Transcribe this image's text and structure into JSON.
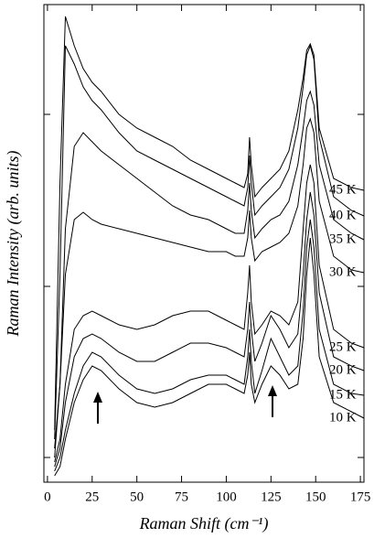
{
  "chart_data": {
    "type": "line",
    "xlabel": "Raman Shift (cm⁻¹)",
    "ylabel": "Raman Intensity (arb. units)",
    "x": [
      4,
      7,
      10,
      15,
      20,
      25,
      30,
      40,
      50,
      60,
      70,
      80,
      90,
      100,
      105,
      110,
      112,
      113,
      114,
      116,
      120,
      125,
      130,
      135,
      140,
      143,
      145,
      147,
      149,
      152,
      160,
      170,
      177
    ],
    "xlim": [
      -2,
      177
    ],
    "xticks": [
      0,
      25,
      50,
      75,
      100,
      125,
      150,
      175
    ],
    "ylim": [
      0,
      522
    ],
    "yticks": [
      27,
      214,
      402
    ],
    "series": [
      {
        "name": "45 K",
        "color": "#000000",
        "values": [
          57,
          327,
          509,
          477,
          452,
          437,
          427,
          402,
          387,
          377,
          367,
          352,
          342,
          332,
          327,
          322,
          337,
          377,
          347,
          312,
          322,
          332,
          342,
          362,
          407,
          442,
          472,
          479,
          467,
          387,
          332,
          322,
          319
        ]
      },
      {
        "name": "40 K",
        "color": "#000000",
        "values": [
          47,
          227,
          477,
          457,
          432,
          417,
          407,
          382,
          362,
          352,
          342,
          332,
          322,
          312,
          307,
          302,
          322,
          357,
          327,
          292,
          302,
          312,
          322,
          342,
          387,
          432,
          467,
          477,
          462,
          377,
          312,
          297,
          291
        ]
      },
      {
        "name": "35 K",
        "color": "#000000",
        "values": [
          37,
          107,
          277,
          367,
          382,
          372,
          362,
          347,
          332,
          317,
          302,
          292,
          287,
          277,
          272,
          272,
          297,
          327,
          297,
          267,
          277,
          287,
          292,
          307,
          347,
          387,
          417,
          427,
          412,
          347,
          287,
          272,
          265
        ]
      },
      {
        "name": "30 K",
        "color": "#000000",
        "values": [
          27,
          107,
          227,
          287,
          295,
          287,
          282,
          277,
          272,
          267,
          262,
          257,
          252,
          252,
          247,
          247,
          267,
          297,
          267,
          242,
          252,
          257,
          262,
          272,
          302,
          347,
          387,
          397,
          382,
          307,
          247,
          232,
          229
        ]
      },
      {
        "name": "25 K",
        "color": "#000000",
        "values": [
          22,
          47,
          107,
          167,
          182,
          187,
          182,
          172,
          167,
          172,
          182,
          187,
          187,
          177,
          172,
          167,
          207,
          237,
          197,
          162,
          172,
          187,
          182,
          172,
          197,
          277,
          327,
          347,
          327,
          237,
          167,
          152,
          147
        ]
      },
      {
        "name": "20 K",
        "color": "#000000",
        "values": [
          17,
          37,
          87,
          137,
          157,
          162,
          157,
          142,
          132,
          132,
          142,
          152,
          152,
          147,
          142,
          137,
          167,
          197,
          167,
          132,
          152,
          182,
          167,
          147,
          162,
          227,
          287,
          317,
          292,
          207,
          137,
          127,
          122
        ]
      },
      {
        "name": "15 K",
        "color": "#000000",
        "values": [
          12,
          27,
          57,
          97,
          127,
          142,
          137,
          117,
          102,
          97,
          102,
          112,
          117,
          117,
          112,
          107,
          137,
          167,
          132,
          97,
          122,
          157,
          137,
          117,
          127,
          187,
          257,
          287,
          257,
          167,
          107,
          97,
          95
        ]
      },
      {
        "name": "10 K",
        "color": "#000000",
        "values": [
          7,
          17,
          47,
          87,
          112,
          127,
          122,
          102,
          87,
          82,
          87,
          97,
          107,
          107,
          102,
          97,
          117,
          142,
          107,
          87,
          107,
          127,
          117,
          102,
          107,
          157,
          227,
          267,
          227,
          137,
          87,
          77,
          70
        ]
      }
    ]
  }
}
